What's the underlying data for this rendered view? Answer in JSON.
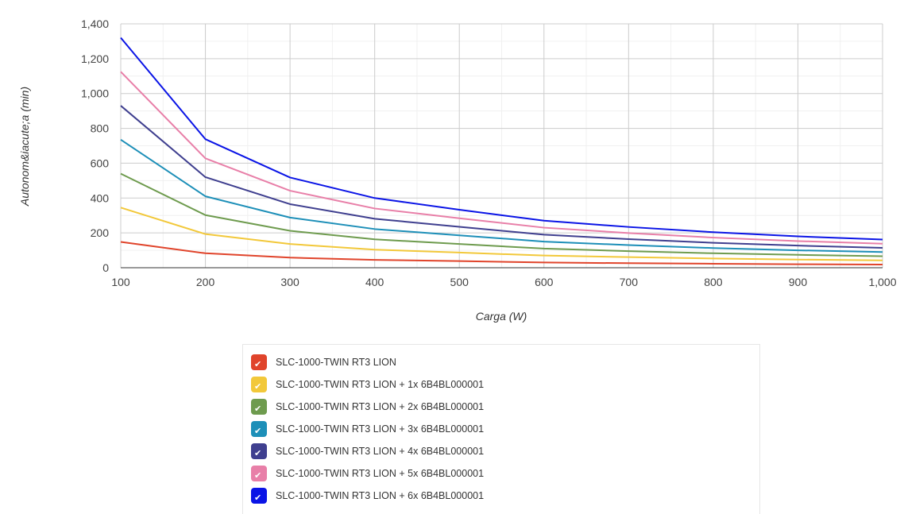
{
  "chart_data": {
    "type": "line",
    "title": "",
    "xlabel": "Carga (W)",
    "ylabel": "Autonom&iacute;a (min)",
    "x": [
      100,
      200,
      300,
      400,
      500,
      600,
      700,
      800,
      900,
      1000
    ],
    "xlim": [
      100,
      1000
    ],
    "ylim": [
      0,
      1400
    ],
    "x_ticks": [
      100,
      200,
      300,
      400,
      500,
      600,
      700,
      800,
      900,
      1000
    ],
    "x_tick_labels": [
      "100",
      "200",
      "300",
      "400",
      "500",
      "600",
      "700",
      "800",
      "900",
      "1,000"
    ],
    "y_ticks": [
      0,
      200,
      400,
      600,
      800,
      1000,
      1200,
      1400
    ],
    "y_tick_labels": [
      "0",
      "200",
      "400",
      "600",
      "800",
      "1,000",
      "1,200",
      "1,400"
    ],
    "grid": true,
    "legend_position": "bottom",
    "series": [
      {
        "name": "SLC-1000-TWIN RT3 LION",
        "color": "#e0442b",
        "values": [
          148,
          83,
          58,
          45,
          38,
          30,
          26,
          23,
          20,
          18
        ]
      },
      {
        "name": "SLC-1000-TWIN RT3 LION + 1x 6B4BL000001",
        "color": "#f2c83a",
        "values": [
          345,
          193,
          136,
          104,
          87,
          70,
          61,
          53,
          47,
          42
        ]
      },
      {
        "name": "SLC-1000-TWIN RT3 LION + 2x 6B4BL000001",
        "color": "#6e9b4e",
        "values": [
          540,
          302,
          212,
          163,
          136,
          110,
          95,
          83,
          74,
          66
        ]
      },
      {
        "name": "SLC-1000-TWIN RT3 LION + 3x 6B4BL000001",
        "color": "#1d8fb8",
        "values": [
          735,
          410,
          288,
          222,
          186,
          150,
          130,
          113,
          100,
          90
        ]
      },
      {
        "name": "SLC-1000-TWIN RT3 LION + 4x 6B4BL000001",
        "color": "#3f3f8f",
        "values": [
          930,
          520,
          365,
          281,
          235,
          190,
          164,
          143,
          127,
          114
        ]
      },
      {
        "name": "SLC-1000-TWIN RT3 LION + 5x 6B4BL000001",
        "color": "#e87fa8",
        "values": [
          1125,
          628,
          442,
          340,
          284,
          230,
          199,
          173,
          153,
          138
        ]
      },
      {
        "name": "SLC-1000-TWIN RT3 LION + 6x 6B4BL000001",
        "color": "#0a14e6",
        "values": [
          1320,
          738,
          518,
          400,
          333,
          270,
          234,
          204,
          180,
          162
        ]
      }
    ]
  }
}
